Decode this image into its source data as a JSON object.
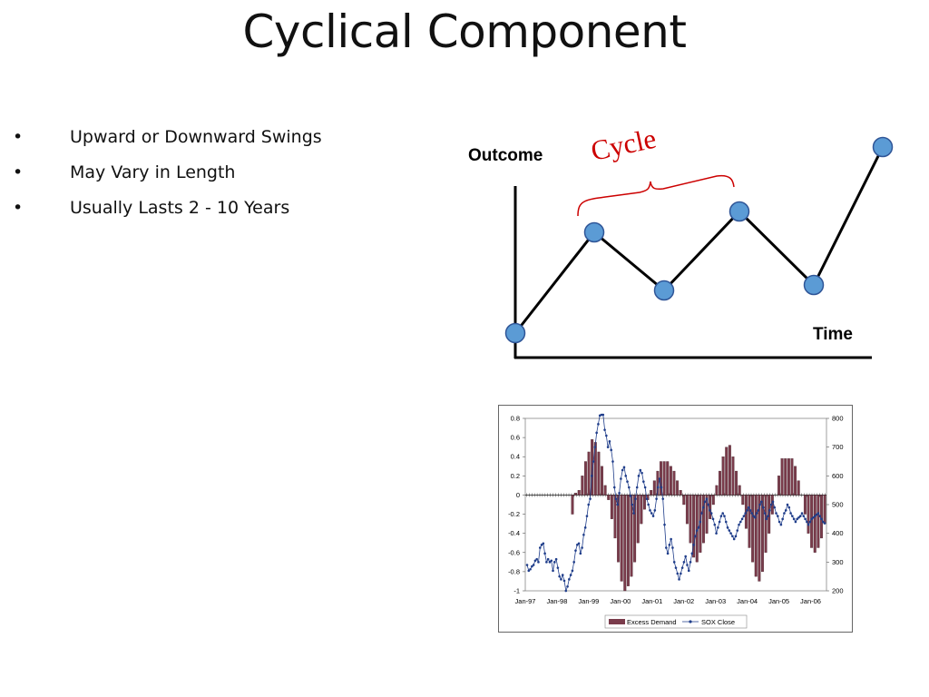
{
  "slide": {
    "title": "Cyclical Component",
    "bullets": [
      "Upward or Downward Swings",
      "May Vary in Length",
      "Usually Lasts 2 - 10 Years"
    ],
    "bullet_glyph": "•"
  },
  "diagram": {
    "y_label": "Outcome",
    "x_label": "Time",
    "cycle_label": "Cycle",
    "cycle_color": "#cc0000",
    "point_color": "#5b9bd5",
    "point_stroke": "#2f5597"
  },
  "chart_data": {
    "type": "bar",
    "x_ticks": [
      "Jan-97",
      "Jan-98",
      "Jan-99",
      "Jan-00",
      "Jan-01",
      "Jan-02",
      "Jan-03",
      "Jan-04",
      "Jan-05",
      "Jan-06"
    ],
    "y_left": {
      "ticks": [
        0.8,
        0.6,
        0.4,
        0.2,
        0,
        -0.2,
        -0.4,
        -0.6,
        -0.8,
        -1
      ],
      "lim": [
        -1,
        0.8
      ]
    },
    "y_right": {
      "ticks": [
        800,
        700,
        600,
        500,
        400,
        300,
        200
      ],
      "lim": [
        200,
        800
      ]
    },
    "legend": [
      "Excess Demand",
      "SOX Close"
    ],
    "legend_position": "bottom",
    "colors": {
      "bars": "#7a3b4b",
      "line": "#1f3d8a"
    },
    "series": [
      {
        "name": "Excess Demand",
        "type": "bar",
        "axis": "left",
        "step_months": 2,
        "start": "Jan-97",
        "values": [
          0,
          0,
          0,
          0,
          0,
          0,
          0,
          0,
          0,
          0,
          0,
          0,
          0,
          0,
          -0.2,
          0.02,
          0.05,
          0.2,
          0.35,
          0.45,
          0.58,
          0.55,
          0.45,
          0.3,
          0.1,
          -0.05,
          -0.25,
          -0.45,
          -0.7,
          -0.9,
          -1,
          -0.95,
          -0.85,
          -0.7,
          -0.5,
          -0.3,
          -0.15,
          -0.05,
          0.05,
          0.15,
          0.25,
          0.35,
          0.35,
          0.35,
          0.3,
          0.25,
          0.15,
          0.05,
          -0.1,
          -0.3,
          -0.5,
          -0.65,
          -0.7,
          -0.6,
          -0.5,
          -0.4,
          -0.25,
          -0.1,
          0.1,
          0.25,
          0.4,
          0.5,
          0.52,
          0.4,
          0.25,
          0.1,
          -0.1,
          -0.35,
          -0.55,
          -0.7,
          -0.85,
          -0.9,
          -0.8,
          -0.6,
          -0.4,
          -0.2,
          0,
          0.2,
          0.38,
          0.38,
          0.38,
          0.38,
          0.3,
          0.15,
          0,
          -0.2,
          -0.4,
          -0.55,
          -0.6,
          -0.55,
          -0.45,
          -0.3
        ]
      },
      {
        "name": "SOX Close",
        "type": "line",
        "axis": "right",
        "x": [
          0,
          1,
          2,
          3,
          4,
          5,
          6,
          7,
          8,
          9,
          10,
          11,
          12,
          13,
          14,
          15,
          16,
          17,
          18,
          19,
          20,
          21,
          22,
          23,
          24,
          25,
          26,
          27,
          28,
          29,
          30,
          31,
          32,
          33,
          34,
          35,
          36,
          37,
          38,
          39,
          40,
          41,
          42,
          43,
          44,
          45,
          46,
          47,
          48,
          49,
          50,
          51,
          52,
          53,
          54,
          55,
          56,
          57,
          58,
          59,
          60,
          61,
          62,
          63,
          64,
          65,
          66,
          67,
          68,
          69,
          70,
          71,
          72,
          73,
          74,
          75,
          76,
          77,
          78,
          79,
          80,
          81,
          82,
          83,
          84,
          85,
          86,
          87,
          88,
          89,
          90,
          91,
          92,
          93,
          94,
          95,
          96,
          97,
          98,
          99,
          100,
          101,
          102,
          103,
          104,
          105,
          106,
          107,
          108,
          109,
          110,
          111,
          112,
          113,
          114,
          115,
          116,
          117,
          118,
          119,
          120,
          121,
          122,
          123,
          124,
          125,
          126,
          127,
          128,
          129,
          130,
          131,
          132,
          133,
          134,
          135,
          136,
          137,
          138,
          139,
          140,
          141,
          142,
          143,
          144,
          145,
          146,
          147,
          148,
          149,
          150,
          151,
          152,
          153,
          154,
          155,
          156,
          157,
          158,
          159,
          160,
          161,
          162,
          163,
          164,
          165,
          166,
          167,
          168,
          169,
          170,
          171,
          172,
          173,
          174,
          175,
          176,
          177,
          178,
          179,
          180,
          181,
          182,
          183,
          184
        ],
        "values": [
          290,
          270,
          275,
          285,
          290,
          305,
          310,
          300,
          350,
          360,
          365,
          330,
          300,
          310,
          300,
          305,
          270,
          300,
          310,
          280,
          250,
          240,
          255,
          235,
          200,
          215,
          240,
          255,
          270,
          300,
          340,
          360,
          365,
          330,
          350,
          395,
          420,
          460,
          500,
          520,
          600,
          650,
          700,
          750,
          780,
          810,
          850,
          820,
          760,
          740,
          700,
          720,
          690,
          650,
          560,
          520,
          500,
          540,
          590,
          620,
          630,
          600,
          580,
          560,
          530,
          500,
          470,
          520,
          560,
          600,
          620,
          610,
          580,
          560,
          520,
          500,
          480,
          470,
          460,
          480,
          520,
          560,
          590,
          560,
          520,
          430,
          350,
          330,
          360,
          380,
          350,
          300,
          280,
          260,
          240,
          260,
          280,
          300,
          320,
          290,
          270,
          300,
          330,
          360,
          390,
          410,
          420,
          440,
          470,
          490,
          510,
          520,
          500,
          480,
          470,
          450,
          430,
          400,
          420,
          440,
          460,
          470,
          460,
          440,
          420,
          410,
          400,
          390,
          380,
          390,
          410,
          430,
          440,
          450,
          460,
          470,
          480,
          490,
          480,
          470,
          460,
          455,
          470,
          480,
          500,
          510,
          490,
          470,
          450,
          460,
          480,
          500,
          510,
          490,
          470,
          460,
          440,
          430,
          450,
          470,
          480,
          500,
          490,
          470,
          460,
          450,
          440,
          450,
          455,
          460,
          470,
          460,
          450,
          440,
          430,
          440,
          450,
          455,
          460,
          465,
          470,
          460,
          450,
          440,
          435
        ]
      }
    ]
  }
}
